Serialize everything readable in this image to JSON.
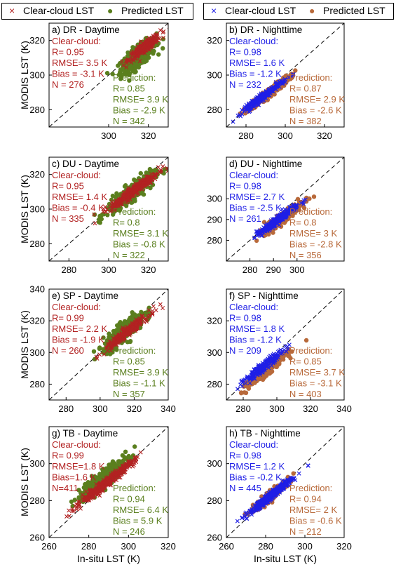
{
  "legends": [
    {
      "entries": [
        {
          "marker": "x",
          "color": "#b22222",
          "label": "Clear-cloud LST"
        },
        {
          "marker": "dot",
          "color": "#5a7f1e",
          "label": "Predicted LST"
        }
      ]
    },
    {
      "entries": [
        {
          "marker": "x",
          "color": "#1f1fe6",
          "label": "Clear-cloud LST"
        },
        {
          "marker": "dot",
          "color": "#b8693a",
          "label": "Predicted LST"
        }
      ]
    }
  ],
  "axis_labels": {
    "ylabel": "MODIS LST (K)",
    "xlabel": "In-situ LST (K)"
  },
  "colors": {
    "day_clear": "#b22222",
    "day_pred": "#5a7f1e",
    "night_clear": "#1f1fe6",
    "night_pred": "#b8693a"
  },
  "chart_data": [
    {
      "type": "scatter",
      "title": "a) DR - Daytime",
      "xlim": [
        270,
        330
      ],
      "ylim": [
        270,
        330
      ],
      "xticks": [
        300,
        320
      ],
      "yticks": [
        280,
        300,
        320
      ],
      "grid": false,
      "reference_line": "1:1",
      "series": [
        {
          "name": "Clear-cloud LST",
          "marker": "x",
          "color": "#b22222",
          "n": 276,
          "center": [
            318,
            316
          ],
          "x_spread": 8,
          "y_spread": 3
        },
        {
          "name": "Predicted LST",
          "marker": "dot",
          "color": "#5a7f1e",
          "n": 342,
          "center": [
            315,
            311
          ],
          "x_spread": 9,
          "y_spread": 6
        }
      ],
      "stats": [
        {
          "color": "#b22222",
          "position": "top-left",
          "lines": [
            "Clear-cloud:",
            "R= 0.95",
            "RMSE= 3.5 K",
            "Bias = -3.1 K",
            "N = 276"
          ]
        },
        {
          "color": "#5a7f1e",
          "position": "bottom-right",
          "lines": [
            "Prediction:",
            "R= 0.85",
            "RMSE= 3.9 K",
            "Bias = -2.9 K",
            "N = 342"
          ]
        }
      ]
    },
    {
      "type": "scatter",
      "title": "b) DR - Nighttime",
      "xlim": [
        270,
        330
      ],
      "ylim": [
        270,
        330
      ],
      "xticks": [
        280,
        300,
        320
      ],
      "yticks": [
        280,
        300,
        320
      ],
      "grid": false,
      "reference_line": "1:1",
      "series": [
        {
          "name": "Clear-cloud LST",
          "marker": "x",
          "color": "#1f1fe6",
          "n": 232,
          "center": [
            289,
            288
          ],
          "x_spread": 11,
          "y_spread": 2
        },
        {
          "name": "Predicted LST",
          "marker": "dot",
          "color": "#b8693a",
          "n": 382,
          "center": [
            292,
            290
          ],
          "x_spread": 10,
          "y_spread": 2.5
        }
      ],
      "stats": [
        {
          "color": "#1f1fe6",
          "position": "top-left",
          "lines": [
            "Clear-cloud:",
            "R= 0.98",
            "RMSE= 1.6 K",
            "Bias = -1.2 K",
            "N = 232"
          ]
        },
        {
          "color": "#b8693a",
          "position": "bottom-right",
          "lines": [
            "Prediction:",
            "R= 0.87",
            "RMSE= 2.9 K",
            "Bias = -2.6 K",
            "N = 382"
          ]
        }
      ]
    },
    {
      "type": "scatter",
      "title": "c) DU - Daytime",
      "xlim": [
        270,
        330
      ],
      "ylim": [
        270,
        330
      ],
      "xticks": [
        280,
        300,
        320
      ],
      "yticks": [
        280,
        300,
        320
      ],
      "grid": false,
      "reference_line": "1:1",
      "series": [
        {
          "name": "Clear-cloud LST",
          "marker": "x",
          "color": "#b22222",
          "n": 335,
          "center": [
            313,
            311
          ],
          "x_spread": 12,
          "y_spread": 3
        },
        {
          "name": "Predicted LST",
          "marker": "dot",
          "color": "#5a7f1e",
          "n": 322,
          "center": [
            311,
            309
          ],
          "x_spread": 12,
          "y_spread": 5
        }
      ],
      "stats": [
        {
          "color": "#b22222",
          "position": "top-left",
          "lines": [
            "Clear-cloud:",
            "R= 0.95",
            "RMSE= 1.4 K",
            "Bias = -0.4 K",
            "N = 335"
          ]
        },
        {
          "color": "#5a7f1e",
          "position": "bottom-right",
          "lines": [
            "Prediction:",
            "R= 0.8",
            "RMSE= 3.1 K",
            "Bias = -0.8 K",
            "N = 322"
          ]
        }
      ]
    },
    {
      "type": "scatter",
      "title": "d) DU - Nighttime",
      "xlim": [
        270,
        320
      ],
      "ylim": [
        270,
        320
      ],
      "xticks": [
        280,
        290,
        300
      ],
      "yticks": [
        280,
        290,
        300
      ],
      "grid": false,
      "reference_line": "1:1",
      "series": [
        {
          "name": "Clear-cloud LST",
          "marker": "x",
          "color": "#1f1fe6",
          "n": 261,
          "center": [
            292,
            290
          ],
          "x_spread": 9,
          "y_spread": 2
        },
        {
          "name": "Predicted LST",
          "marker": "dot",
          "color": "#b8693a",
          "n": 356,
          "center": [
            294,
            291
          ],
          "x_spread": 8,
          "y_spread": 2.5
        }
      ],
      "stats": [
        {
          "color": "#1f1fe6",
          "position": "top-left",
          "lines": [
            "Clear-cloud:",
            "R= 0.98",
            "RMSE= 2.7 K",
            "Bias = -2.5 K",
            "N = 261"
          ]
        },
        {
          "color": "#b8693a",
          "position": "bottom-right",
          "lines": [
            "Prediction:",
            "R= 0.8",
            "RMSE= 3 K",
            "Bias = -2.8 K",
            "N = 356"
          ]
        }
      ]
    },
    {
      "type": "scatter",
      "title": "e) SP - Daytime",
      "xlim": [
        270,
        340
      ],
      "ylim": [
        270,
        340
      ],
      "xticks": [
        280,
        300,
        320,
        340
      ],
      "yticks": [
        280,
        300,
        320,
        340
      ],
      "grid": false,
      "reference_line": "1:1",
      "series": [
        {
          "name": "Clear-cloud LST",
          "marker": "x",
          "color": "#b22222",
          "n": 260,
          "center": [
            316,
            313
          ],
          "x_spread": 13,
          "y_spread": 3
        },
        {
          "name": "Predicted LST",
          "marker": "dot",
          "color": "#5a7f1e",
          "n": 357,
          "center": [
            314,
            313
          ],
          "x_spread": 12,
          "y_spread": 6
        }
      ],
      "stats": [
        {
          "color": "#b22222",
          "position": "top-left",
          "lines": [
            "Clear-cloud:",
            "R= 0.99",
            "RMSE= 2.2 K",
            "Bias = -1.9 K",
            "N = 260"
          ]
        },
        {
          "color": "#5a7f1e",
          "position": "bottom-right",
          "lines": [
            "Prediction:",
            "R= 0.85",
            "RMSE= 3.9 K",
            "Bias = -1.1 K",
            "N = 357"
          ]
        }
      ]
    },
    {
      "type": "scatter",
      "title": "f) SP - Nighttime",
      "xlim": [
        270,
        340
      ],
      "ylim": [
        270,
        340
      ],
      "xticks": [
        280,
        300,
        320,
        340
      ],
      "yticks": [
        280,
        300,
        320
      ],
      "grid": false,
      "reference_line": "1:1",
      "series": [
        {
          "name": "Clear-cloud LST",
          "marker": "x",
          "color": "#1f1fe6",
          "n": 209,
          "center": [
            292,
            291
          ],
          "x_spread": 12,
          "y_spread": 3
        },
        {
          "name": "Predicted LST",
          "marker": "dot",
          "color": "#b8693a",
          "n": 403,
          "center": [
            294,
            289
          ],
          "x_spread": 11,
          "y_spread": 3
        }
      ],
      "stats": [
        {
          "color": "#1f1fe6",
          "position": "top-left",
          "lines": [
            "Clear-cloud:",
            "R= 0.98",
            "RMSE= 1.8 K",
            "Bias = -1.2 K",
            "N = 209"
          ]
        },
        {
          "color": "#b8693a",
          "position": "bottom-right",
          "lines": [
            "Prediction:",
            "R= 0.85",
            "RMSE= 3.7 K",
            "Bias = -3.1 K",
            "N = 403"
          ]
        }
      ]
    },
    {
      "type": "scatter",
      "title": "g) TB - Daytime",
      "xlim": [
        260,
        320
      ],
      "ylim": [
        260,
        320
      ],
      "xticks": [
        260,
        280,
        300,
        320
      ],
      "yticks": [
        260,
        280,
        300
      ],
      "grid": false,
      "reference_line": "1:1",
      "series": [
        {
          "name": "Clear-cloud LST",
          "marker": "x",
          "color": "#b22222",
          "n": 411,
          "center": [
            288,
            289
          ],
          "x_spread": 15,
          "y_spread": 2.5
        },
        {
          "name": "Predicted LST",
          "marker": "dot",
          "color": "#5a7f1e",
          "n": 246,
          "center": [
            287,
            292
          ],
          "x_spread": 13,
          "y_spread": 5
        }
      ],
      "stats": [
        {
          "color": "#b22222",
          "position": "top-left",
          "lines": [
            "Clear-cloud:",
            "R= 0.99",
            "RMSE=1.8 K",
            "Bias=1.6 K",
            "N=411"
          ]
        },
        {
          "color": "#5a7f1e",
          "position": "bottom-right",
          "lines": [
            "Prediction:",
            "R= 0.94",
            "RMSE= 6.4 K",
            "Bias = 5.9 K",
            "N = 246"
          ]
        }
      ]
    },
    {
      "type": "scatter",
      "title": "h) TB - Nighttime",
      "xlim": [
        260,
        320
      ],
      "ylim": [
        260,
        320
      ],
      "xticks": [
        260,
        280,
        300,
        320
      ],
      "yticks": [
        260,
        280,
        300
      ],
      "grid": false,
      "reference_line": "1:1",
      "series": [
        {
          "name": "Clear-cloud LST",
          "marker": "x",
          "color": "#1f1fe6",
          "n": 445,
          "center": [
            282,
            282
          ],
          "x_spread": 11,
          "y_spread": 2
        },
        {
          "name": "Predicted LST",
          "marker": "dot",
          "color": "#b8693a",
          "n": 212,
          "center": [
            283,
            283
          ],
          "x_spread": 9,
          "y_spread": 2.5
        }
      ],
      "stats": [
        {
          "color": "#1f1fe6",
          "position": "top-left",
          "lines": [
            "Clear-cloud:",
            "R= 0.98",
            "RMSE= 1.2 K",
            "Bias = -0.2 K",
            "N = 445"
          ]
        },
        {
          "color": "#b8693a",
          "position": "bottom-right",
          "lines": [
            "Prediction:",
            "R= 0.94",
            "RMSE= 2 K",
            "Bias = -0.6 K",
            "N = 212"
          ]
        }
      ]
    }
  ]
}
